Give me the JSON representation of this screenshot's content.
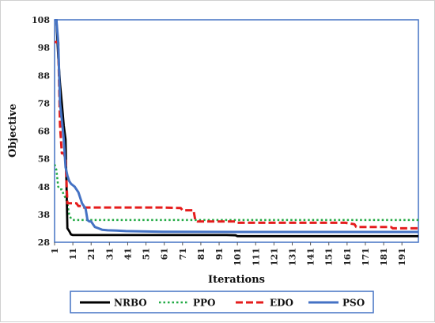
{
  "chart_data": {
    "type": "line",
    "title": "",
    "xlabel": "Iterations",
    "ylabel": "Objective",
    "xlim": [
      1,
      200
    ],
    "ylim": [
      28,
      108
    ],
    "y_ticks": [
      28,
      38,
      48,
      58,
      68,
      78,
      88,
      98,
      108
    ],
    "x_ticks": [
      1,
      11,
      21,
      31,
      41,
      51,
      61,
      71,
      81,
      91,
      101,
      111,
      121,
      131,
      141,
      151,
      161,
      171,
      181,
      191
    ],
    "grid": false,
    "legend_position": "bottom",
    "series": [
      {
        "name": "NRBO",
        "color": "#000000",
        "style": "solid",
        "x": [
          1,
          2,
          3,
          4,
          5,
          6,
          7,
          8,
          9,
          10,
          11,
          15,
          20,
          30,
          50,
          80,
          95,
          100,
          101,
          120,
          150,
          170,
          200
        ],
        "y": [
          108,
          108,
          95,
          85,
          78,
          70,
          65,
          33,
          32,
          30.8,
          30.6,
          30.6,
          30.6,
          30.6,
          30.6,
          30.6,
          30.6,
          30.5,
          30.2,
          30.2,
          30.2,
          30.2,
          30.2
        ]
      },
      {
        "name": "PPO",
        "color": "#22aa44",
        "style": "dotted",
        "x": [
          1,
          2,
          3,
          4,
          5,
          6,
          7,
          8,
          9,
          10,
          11,
          12,
          20,
          40,
          60,
          80,
          100,
          120,
          140,
          160,
          180,
          200
        ],
        "y": [
          56,
          54,
          48,
          47,
          47,
          45,
          44,
          42,
          38,
          36.5,
          36,
          36,
          36,
          36,
          36,
          36,
          36,
          36,
          36,
          36,
          36,
          36
        ]
      },
      {
        "name": "EDO",
        "color": "#e51c1c",
        "style": "dashed",
        "x": [
          1,
          3,
          4,
          5,
          6,
          7,
          8,
          9,
          10,
          11,
          12,
          13,
          14,
          15,
          16,
          17,
          18,
          25,
          40,
          60,
          70,
          71,
          77,
          78,
          79,
          80,
          100,
          101,
          130,
          160,
          165,
          166,
          185,
          186,
          200
        ],
        "y": [
          100,
          100,
          70,
          60,
          60,
          58,
          42,
          42,
          42,
          42,
          42,
          42,
          41,
          41,
          41,
          40.5,
          40.5,
          40.5,
          40.5,
          40.5,
          40.3,
          39.5,
          39.5,
          35.8,
          35.5,
          35.5,
          35.5,
          35,
          35,
          35,
          34.5,
          33.5,
          33.5,
          33,
          33
        ]
      },
      {
        "name": "PSO",
        "color": "#4472c4",
        "style": "solid",
        "x": [
          1,
          2,
          3,
          4,
          5,
          6,
          7,
          8,
          9,
          10,
          11,
          12,
          13,
          14,
          15,
          16,
          17,
          18,
          19,
          20,
          21,
          22,
          23,
          25,
          27,
          30,
          35,
          40,
          60,
          100,
          150,
          200
        ],
        "y": [
          108,
          108,
          100,
          78,
          72,
          65,
          55,
          52,
          50,
          49,
          48.5,
          48,
          47,
          46,
          44,
          42,
          41,
          40,
          36,
          35.5,
          35.5,
          34.5,
          33.5,
          33,
          32.5,
          32.3,
          32.2,
          32,
          31.8,
          31.7,
          31.7,
          31.7
        ]
      }
    ]
  }
}
